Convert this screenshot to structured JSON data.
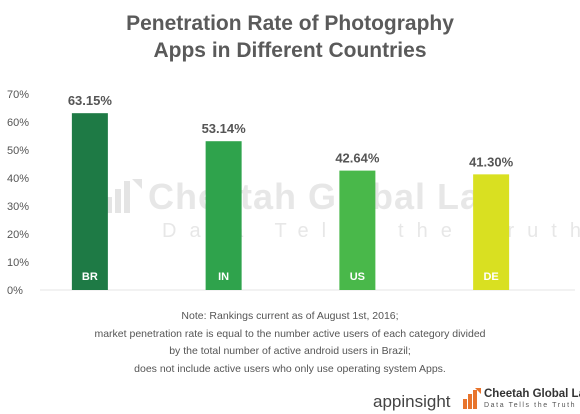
{
  "title_line1": "Penetration Rate of Photography",
  "title_line2": "Apps in Different Countries",
  "watermark": {
    "name": "Cheetah Global Lab",
    "tagline": "Data Tells the Truth"
  },
  "note": {
    "line1": "Note: Rankings current as of August 1st, 2016;",
    "line2": "market penetration rate is equal to the number active users of each category divided",
    "line3": "by the total number of active android users in Brazil;",
    "line4": "does not include active users who only use operating system Apps."
  },
  "footer": {
    "appinsight_logo": "appinsight",
    "cheetah_name": "Cheetah Global Lab",
    "cheetah_tagline": "Data Tells the Truth"
  },
  "chart_data": {
    "type": "bar",
    "title": "Penetration Rate of Photography Apps in Different Countries",
    "categories": [
      "BR",
      "IN",
      "US",
      "DE"
    ],
    "values": [
      63.15,
      53.14,
      42.64,
      41.3
    ],
    "value_labels": [
      "63.15%",
      "53.14%",
      "42.64%",
      "41.30%"
    ],
    "colors": [
      "#1e7a45",
      "#2fa34c",
      "#49b84a",
      "#d9e021"
    ],
    "ylim": [
      0,
      70
    ],
    "yticks": [
      0,
      10,
      20,
      30,
      40,
      50,
      60,
      70
    ],
    "ytick_labels": [
      "0%",
      "10%",
      "20%",
      "30%",
      "40%",
      "50%",
      "60%",
      "70%"
    ],
    "grid": false,
    "xlabel": "",
    "ylabel": ""
  }
}
